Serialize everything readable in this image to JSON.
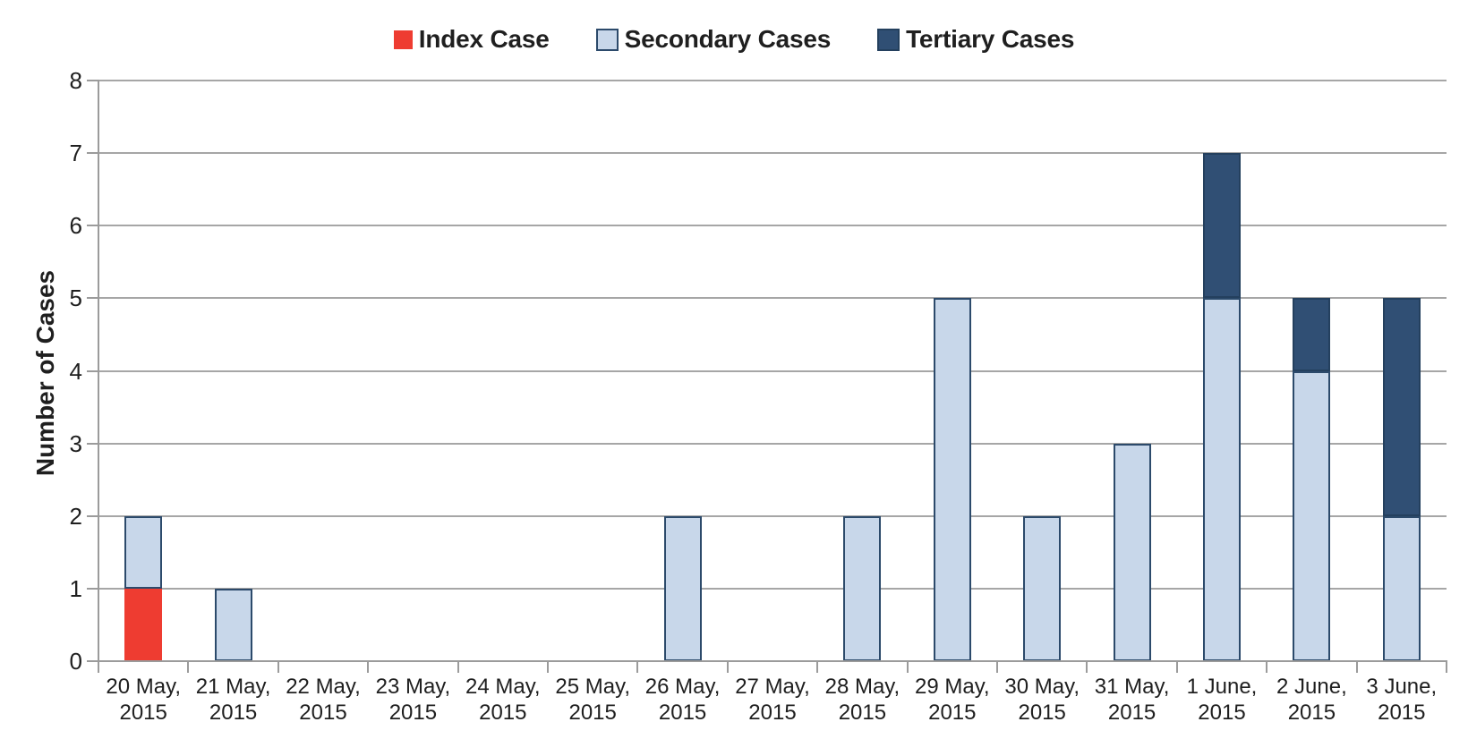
{
  "page": {
    "background": "#ffffff"
  },
  "chart_data": {
    "type": "bar",
    "stacked": true,
    "title": "",
    "xlabel": "",
    "ylabel": "Number of Cases",
    "ylim": [
      0,
      8
    ],
    "ytick_interval": 1,
    "yticks": [
      "0",
      "1",
      "2",
      "3",
      "4",
      "5",
      "6",
      "7",
      "8"
    ],
    "grid": "horizontal",
    "legend_position": "top-center",
    "categories": [
      "20 May, 2015",
      "21 May, 2015",
      "22 May, 2015",
      "23 May, 2015",
      "24 May, 2015",
      "25 May, 2015",
      "26 May, 2015",
      "27 May, 2015",
      "28 May, 2015",
      "29 May, 2015",
      "30 May, 2015",
      "31 May, 2015",
      "1 June, 2015",
      "2 June, 2015",
      "3 June, 2015"
    ],
    "series": [
      {
        "name": "Index Case",
        "color": "#ee3c31",
        "border": null,
        "values": [
          1,
          0,
          0,
          0,
          0,
          0,
          0,
          0,
          0,
          0,
          0,
          0,
          0,
          0,
          0
        ]
      },
      {
        "name": "Secondary Cases",
        "color": "#c8d7ea",
        "border": "#2c4a6b",
        "values": [
          1,
          1,
          0,
          0,
          0,
          0,
          2,
          0,
          2,
          5,
          2,
          3,
          5,
          4,
          2
        ]
      },
      {
        "name": "Tertiary Cases",
        "color": "#304f74",
        "border": "#24405e",
        "values": [
          0,
          0,
          0,
          0,
          0,
          0,
          0,
          0,
          0,
          0,
          0,
          0,
          2,
          1,
          3
        ]
      }
    ],
    "totals_by_category": [
      2,
      1,
      0,
      0,
      0,
      0,
      2,
      0,
      2,
      5,
      2,
      3,
      7,
      5,
      5
    ],
    "colors": {
      "gridline": "#a6a6a6",
      "axis": "#9b9b9b",
      "text": "#1f1f1f"
    }
  }
}
